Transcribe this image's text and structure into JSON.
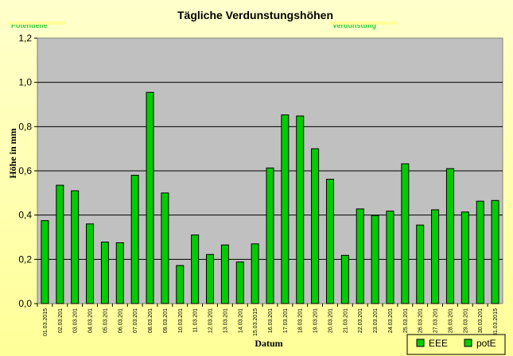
{
  "chart_data": {
    "type": "bar",
    "title": "Tägliche Verdunstungshöhen",
    "clipped_labels": [
      "Potentielle",
      "Verdunstung"
    ],
    "xlabel": "Datum",
    "ylabel": "Höhe in mm",
    "ylim": [
      0,
      1.2
    ],
    "yticks": [
      "0,0",
      "0,2",
      "0,4",
      "0,6",
      "0,8",
      "1,0",
      "1,2"
    ],
    "grid": true,
    "plot_background": "#c0c0c0",
    "bar_color": "#00cc00",
    "legend_position": "bottom-right",
    "legend": [
      "EEE",
      "potE"
    ],
    "categories": [
      "01.03.2015",
      "02.03.201",
      "03.03.201",
      "04.03.201",
      "05.03.201",
      "06.03.201",
      "07.03.201",
      "08.03.201",
      "09.03.201",
      "10.03.201",
      "11.03.201",
      "12.03.201",
      "13.03.201",
      "14.03.201",
      "15.03.2015",
      "16.03.201",
      "17.03.201",
      "18.03.201",
      "19.03.201",
      "20.03.201",
      "21.03.201",
      "22.03.201",
      "23.03.201",
      "24.03.201",
      "25.03.201",
      "26.03.201",
      "27.03.201",
      "28.03.201",
      "29.03.201",
      "30.03.201",
      "31.03.2015"
    ],
    "series": [
      {
        "name": "potE",
        "values": [
          0.375,
          0.535,
          0.51,
          0.36,
          0.278,
          0.275,
          0.58,
          0.955,
          0.5,
          0.172,
          0.31,
          0.222,
          0.265,
          0.188,
          0.27,
          0.613,
          0.853,
          0.848,
          0.7,
          0.562,
          0.218,
          0.428,
          0.398,
          0.418,
          0.632,
          0.355,
          0.424,
          0.61,
          0.414,
          0.463,
          0.466
        ]
      }
    ]
  }
}
